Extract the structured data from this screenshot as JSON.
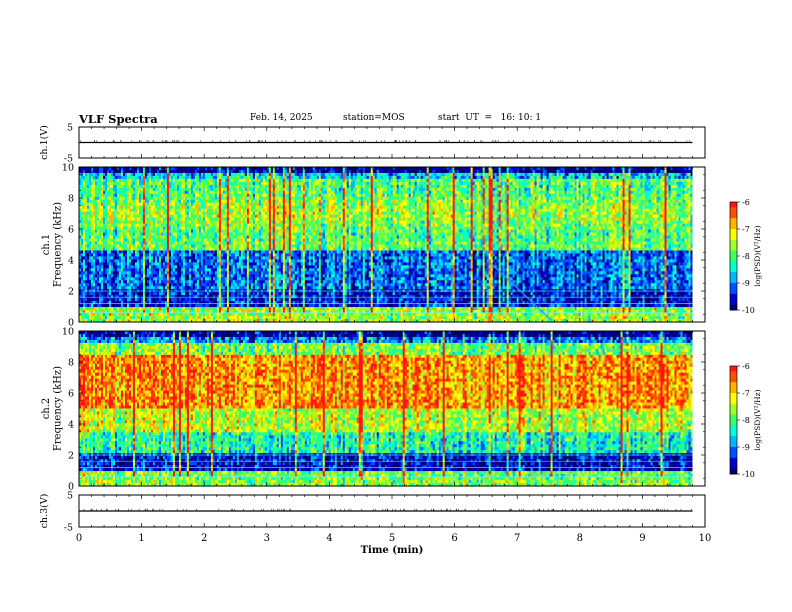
{
  "header": {
    "title": "VLF Spectra",
    "date": "Feb. 14, 2025",
    "station": "station=MOS",
    "start": "start  UT  =   16: 10: 1"
  },
  "colors": {
    "spectrum": [
      "#00006e",
      "#0000d0",
      "#0050ff",
      "#00b4ff",
      "#00ffd2",
      "#3cff64",
      "#a0ff28",
      "#ffff00",
      "#ffb400",
      "#ff5000",
      "#ff1414"
    ],
    "background": "#ffffff",
    "axis": "#000000"
  },
  "chart_data": [
    {
      "type": "line",
      "panel": "ch1-voltage",
      "ylabel": "ch.1(V)",
      "ylim": [
        -5,
        5
      ],
      "yticks": [
        "5",
        "-5"
      ],
      "x": [
        0,
        9.8
      ],
      "y": [
        0,
        0
      ]
    },
    {
      "type": "heatmap",
      "panel": "ch1-spectrogram",
      "ylabel": "ch.1\nFrequency (kHz)",
      "ylim": [
        0,
        10
      ],
      "yticks": [
        "0",
        "2",
        "4",
        "6",
        "8",
        "10"
      ],
      "xlim": [
        0,
        9.8
      ],
      "colorbar": {
        "label": "log(PSD)(V²/Hz)",
        "range": [
          -10,
          -6
        ],
        "ticks": [
          "-6",
          "-7",
          "-8",
          "-9",
          "-10"
        ]
      }
    },
    {
      "type": "heatmap",
      "panel": "ch2-spectrogram",
      "ylabel": "ch.2\nFrequency (kHz)",
      "ylim": [
        0,
        10
      ],
      "yticks": [
        "0",
        "2",
        "4",
        "6",
        "8",
        "10"
      ],
      "xlim": [
        0,
        9.8
      ],
      "colorbar": {
        "label": "log(PSD)(V²/Hz)",
        "range": [
          -10,
          -6
        ],
        "ticks": [
          "-6",
          "-7",
          "-8",
          "-9",
          "-10"
        ]
      }
    },
    {
      "type": "line",
      "panel": "ch3-voltage",
      "ylabel": "ch.3(V)",
      "ylim": [
        -5,
        5
      ],
      "yticks": [
        "5",
        "-5"
      ],
      "x": [
        0,
        9.8
      ],
      "y": [
        0,
        0
      ]
    }
  ],
  "xaxis": {
    "label": "Time (min)",
    "xlim": [
      0,
      10
    ],
    "ticks": [
      "0",
      "1",
      "2",
      "3",
      "4",
      "5",
      "6",
      "7",
      "8",
      "9",
      "10"
    ]
  }
}
